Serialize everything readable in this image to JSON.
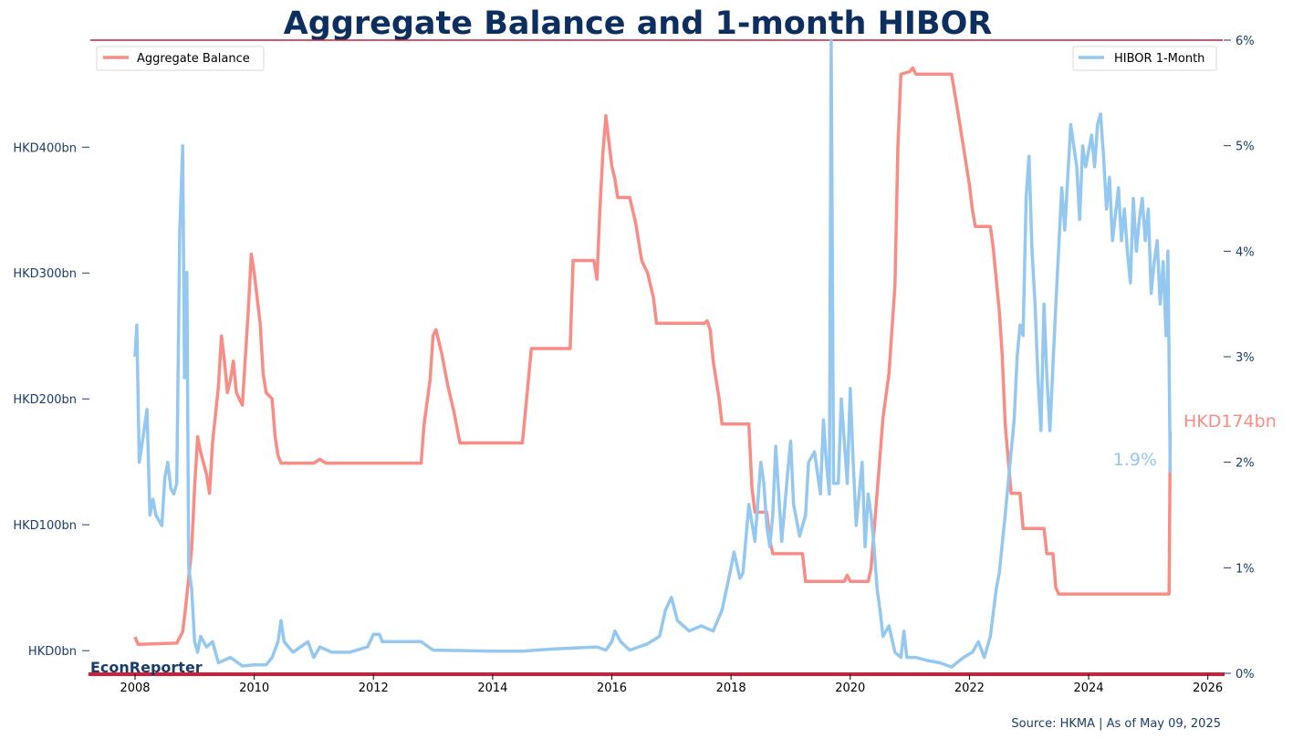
{
  "chart_data": {
    "type": "line",
    "title": "Aggregate Balance and 1-month HIBOR",
    "x_ticks": [
      "2008",
      "2010",
      "2012",
      "2014",
      "2016",
      "2018",
      "2020",
      "2022",
      "2024",
      "2026"
    ],
    "x_range": [
      2007.25,
      2026.25
    ],
    "y_left": {
      "ticks": [
        0,
        100,
        200,
        300,
        400
      ],
      "tick_labels": [
        "HKD0bn",
        "HKD100bn",
        "HKD200bn",
        "HKD300bn",
        "HKD400bn"
      ],
      "range": [
        -18,
        485
      ]
    },
    "y_right": {
      "ticks": [
        0,
        1,
        2,
        3,
        4,
        5,
        6
      ],
      "tick_labels": [
        "0%",
        "1%",
        "2%",
        "3%",
        "4%",
        "5%",
        "6%"
      ],
      "range": [
        0,
        6
      ]
    },
    "legend": {
      "left": {
        "label": "Aggregate Balance",
        "placement": "top-left"
      },
      "right": {
        "label": "HIBOR 1-Month",
        "placement": "top-right"
      }
    },
    "series": [
      {
        "name": "Aggregate Balance",
        "axis": "left",
        "color": "#fa8c86",
        "points": [
          [
            2008.0,
            11
          ],
          [
            2008.05,
            5
          ],
          [
            2008.7,
            6
          ],
          [
            2008.8,
            15
          ],
          [
            2008.85,
            35
          ],
          [
            2008.95,
            80
          ],
          [
            2009.0,
            130
          ],
          [
            2009.05,
            170
          ],
          [
            2009.1,
            158
          ],
          [
            2009.2,
            140
          ],
          [
            2009.25,
            125
          ],
          [
            2009.3,
            165
          ],
          [
            2009.4,
            210
          ],
          [
            2009.45,
            250
          ],
          [
            2009.5,
            230
          ],
          [
            2009.55,
            205
          ],
          [
            2009.6,
            215
          ],
          [
            2009.65,
            230
          ],
          [
            2009.7,
            205
          ],
          [
            2009.8,
            195
          ],
          [
            2009.9,
            270
          ],
          [
            2009.95,
            315
          ],
          [
            2010.0,
            300
          ],
          [
            2010.1,
            260
          ],
          [
            2010.15,
            220
          ],
          [
            2010.2,
            205
          ],
          [
            2010.3,
            200
          ],
          [
            2010.35,
            170
          ],
          [
            2010.4,
            155
          ],
          [
            2010.45,
            149
          ],
          [
            2011.0,
            149
          ],
          [
            2011.1,
            152
          ],
          [
            2011.2,
            149
          ],
          [
            2012.8,
            149
          ],
          [
            2012.85,
            180
          ],
          [
            2012.95,
            215
          ],
          [
            2013.0,
            250
          ],
          [
            2013.05,
            255
          ],
          [
            2013.15,
            235
          ],
          [
            2013.25,
            210
          ],
          [
            2013.35,
            190
          ],
          [
            2013.45,
            165
          ],
          [
            2014.5,
            165
          ],
          [
            2014.55,
            190
          ],
          [
            2014.6,
            215
          ],
          [
            2014.65,
            240
          ],
          [
            2015.3,
            240
          ],
          [
            2015.35,
            310
          ],
          [
            2015.7,
            310
          ],
          [
            2015.75,
            295
          ],
          [
            2015.8,
            350
          ],
          [
            2015.85,
            395
          ],
          [
            2015.9,
            425
          ],
          [
            2015.95,
            405
          ],
          [
            2016.0,
            385
          ],
          [
            2016.05,
            375
          ],
          [
            2016.1,
            360
          ],
          [
            2016.3,
            360
          ],
          [
            2016.4,
            340
          ],
          [
            2016.5,
            310
          ],
          [
            2016.6,
            300
          ],
          [
            2016.7,
            280
          ],
          [
            2016.75,
            260
          ],
          [
            2017.55,
            260
          ],
          [
            2017.6,
            262
          ],
          [
            2017.65,
            255
          ],
          [
            2017.7,
            230
          ],
          [
            2017.8,
            200
          ],
          [
            2017.85,
            180
          ],
          [
            2018.3,
            180
          ],
          [
            2018.35,
            130
          ],
          [
            2018.4,
            110
          ],
          [
            2018.6,
            110
          ],
          [
            2018.65,
            88
          ],
          [
            2018.7,
            77
          ],
          [
            2019.2,
            77
          ],
          [
            2019.25,
            55
          ],
          [
            2019.9,
            55
          ],
          [
            2019.95,
            60
          ],
          [
            2020.0,
            55
          ],
          [
            2020.3,
            55
          ],
          [
            2020.35,
            65
          ],
          [
            2020.4,
            95
          ],
          [
            2020.45,
            125
          ],
          [
            2020.55,
            185
          ],
          [
            2020.65,
            220
          ],
          [
            2020.75,
            290
          ],
          [
            2020.8,
            400
          ],
          [
            2020.85,
            458
          ],
          [
            2021.0,
            460
          ],
          [
            2021.05,
            463
          ],
          [
            2021.1,
            458
          ],
          [
            2021.7,
            458
          ],
          [
            2021.8,
            430
          ],
          [
            2021.9,
            400
          ],
          [
            2022.0,
            370
          ],
          [
            2022.05,
            350
          ],
          [
            2022.1,
            337
          ],
          [
            2022.35,
            337
          ],
          [
            2022.4,
            320
          ],
          [
            2022.5,
            270
          ],
          [
            2022.55,
            235
          ],
          [
            2022.6,
            180
          ],
          [
            2022.7,
            125
          ],
          [
            2022.85,
            125
          ],
          [
            2022.9,
            97
          ],
          [
            2023.25,
            97
          ],
          [
            2023.3,
            77
          ],
          [
            2023.4,
            77
          ],
          [
            2023.45,
            50
          ],
          [
            2023.5,
            45
          ],
          [
            2025.35,
            45
          ],
          [
            2025.37,
            174
          ]
        ]
      },
      {
        "name": "HIBOR 1-Month",
        "axis": "right",
        "color": "#94c8f0",
        "points": [
          [
            2008.0,
            3.0
          ],
          [
            2008.03,
            3.3
          ],
          [
            2008.07,
            2.0
          ],
          [
            2008.1,
            2.1
          ],
          [
            2008.15,
            2.3
          ],
          [
            2008.2,
            2.5
          ],
          [
            2008.25,
            1.5
          ],
          [
            2008.3,
            1.65
          ],
          [
            2008.35,
            1.5
          ],
          [
            2008.4,
            1.45
          ],
          [
            2008.45,
            1.4
          ],
          [
            2008.5,
            1.85
          ],
          [
            2008.55,
            2.0
          ],
          [
            2008.6,
            1.75
          ],
          [
            2008.65,
            1.7
          ],
          [
            2008.7,
            1.8
          ],
          [
            2008.75,
            4.2
          ],
          [
            2008.8,
            5.0
          ],
          [
            2008.83,
            2.8
          ],
          [
            2008.87,
            3.8
          ],
          [
            2008.9,
            1.0
          ],
          [
            2008.95,
            0.8
          ],
          [
            2009.0,
            0.3
          ],
          [
            2009.05,
            0.2
          ],
          [
            2009.1,
            0.35
          ],
          [
            2009.2,
            0.25
          ],
          [
            2009.3,
            0.3
          ],
          [
            2009.4,
            0.1
          ],
          [
            2009.6,
            0.15
          ],
          [
            2009.8,
            0.07
          ],
          [
            2010.0,
            0.08
          ],
          [
            2010.2,
            0.08
          ],
          [
            2010.3,
            0.15
          ],
          [
            2010.4,
            0.3
          ],
          [
            2010.45,
            0.5
          ],
          [
            2010.5,
            0.3
          ],
          [
            2010.65,
            0.2
          ],
          [
            2010.9,
            0.3
          ],
          [
            2011.0,
            0.15
          ],
          [
            2011.1,
            0.25
          ],
          [
            2011.3,
            0.2
          ],
          [
            2011.6,
            0.2
          ],
          [
            2011.9,
            0.25
          ],
          [
            2012.0,
            0.37
          ],
          [
            2012.1,
            0.37
          ],
          [
            2012.15,
            0.3
          ],
          [
            2012.8,
            0.3
          ],
          [
            2013.0,
            0.22
          ],
          [
            2014.0,
            0.21
          ],
          [
            2014.5,
            0.21
          ],
          [
            2015.0,
            0.23
          ],
          [
            2015.75,
            0.25
          ],
          [
            2015.9,
            0.22
          ],
          [
            2016.0,
            0.3
          ],
          [
            2016.05,
            0.4
          ],
          [
            2016.15,
            0.3
          ],
          [
            2016.3,
            0.22
          ],
          [
            2016.6,
            0.28
          ],
          [
            2016.8,
            0.35
          ],
          [
            2016.9,
            0.6
          ],
          [
            2017.0,
            0.72
          ],
          [
            2017.1,
            0.5
          ],
          [
            2017.3,
            0.4
          ],
          [
            2017.5,
            0.45
          ],
          [
            2017.7,
            0.4
          ],
          [
            2017.85,
            0.6
          ],
          [
            2018.0,
            1.0
          ],
          [
            2018.05,
            1.15
          ],
          [
            2018.15,
            0.9
          ],
          [
            2018.2,
            0.95
          ],
          [
            2018.3,
            1.6
          ],
          [
            2018.4,
            1.25
          ],
          [
            2018.5,
            2.0
          ],
          [
            2018.55,
            1.8
          ],
          [
            2018.6,
            1.4
          ],
          [
            2018.65,
            1.2
          ],
          [
            2018.7,
            1.5
          ],
          [
            2018.75,
            2.15
          ],
          [
            2018.85,
            1.25
          ],
          [
            2018.95,
            1.9
          ],
          [
            2019.0,
            2.2
          ],
          [
            2019.05,
            1.6
          ],
          [
            2019.15,
            1.3
          ],
          [
            2019.25,
            1.5
          ],
          [
            2019.3,
            2.0
          ],
          [
            2019.4,
            2.1
          ],
          [
            2019.5,
            1.7
          ],
          [
            2019.55,
            2.4
          ],
          [
            2019.6,
            2.0
          ],
          [
            2019.65,
            1.7
          ],
          [
            2019.68,
            6.0
          ],
          [
            2019.72,
            1.8
          ],
          [
            2019.8,
            1.8
          ],
          [
            2019.85,
            2.6
          ],
          [
            2019.95,
            1.8
          ],
          [
            2020.0,
            2.7
          ],
          [
            2020.05,
            2.0
          ],
          [
            2020.1,
            1.4
          ],
          [
            2020.2,
            2.0
          ],
          [
            2020.25,
            1.2
          ],
          [
            2020.3,
            1.7
          ],
          [
            2020.35,
            1.5
          ],
          [
            2020.4,
            1.2
          ],
          [
            2020.45,
            0.8
          ],
          [
            2020.5,
            0.6
          ],
          [
            2020.55,
            0.35
          ],
          [
            2020.65,
            0.45
          ],
          [
            2020.75,
            0.2
          ],
          [
            2020.85,
            0.15
          ],
          [
            2020.9,
            0.4
          ],
          [
            2020.95,
            0.15
          ],
          [
            2021.1,
            0.15
          ],
          [
            2021.3,
            0.12
          ],
          [
            2021.5,
            0.1
          ],
          [
            2021.7,
            0.06
          ],
          [
            2021.9,
            0.15
          ],
          [
            2022.05,
            0.2
          ],
          [
            2022.15,
            0.3
          ],
          [
            2022.25,
            0.15
          ],
          [
            2022.35,
            0.35
          ],
          [
            2022.45,
            0.8
          ],
          [
            2022.5,
            0.95
          ],
          [
            2022.6,
            1.5
          ],
          [
            2022.7,
            2.1
          ],
          [
            2022.75,
            2.4
          ],
          [
            2022.8,
            3.0
          ],
          [
            2022.85,
            3.3
          ],
          [
            2022.9,
            3.2
          ],
          [
            2022.95,
            4.5
          ],
          [
            2023.0,
            4.9
          ],
          [
            2023.05,
            4.0
          ],
          [
            2023.1,
            3.5
          ],
          [
            2023.15,
            2.8
          ],
          [
            2023.2,
            2.3
          ],
          [
            2023.25,
            3.5
          ],
          [
            2023.3,
            2.8
          ],
          [
            2023.35,
            2.3
          ],
          [
            2023.45,
            3.5
          ],
          [
            2023.55,
            4.6
          ],
          [
            2023.6,
            4.2
          ],
          [
            2023.7,
            5.2
          ],
          [
            2023.8,
            4.8
          ],
          [
            2023.85,
            4.3
          ],
          [
            2023.9,
            5.0
          ],
          [
            2023.95,
            4.8
          ],
          [
            2024.05,
            5.1
          ],
          [
            2024.1,
            4.8
          ],
          [
            2024.15,
            5.2
          ],
          [
            2024.2,
            5.3
          ],
          [
            2024.25,
            4.9
          ],
          [
            2024.3,
            4.4
          ],
          [
            2024.35,
            4.7
          ],
          [
            2024.4,
            4.1
          ],
          [
            2024.5,
            4.6
          ],
          [
            2024.55,
            4.1
          ],
          [
            2024.6,
            4.4
          ],
          [
            2024.65,
            4.0
          ],
          [
            2024.7,
            3.7
          ],
          [
            2024.75,
            4.5
          ],
          [
            2024.8,
            4.0
          ],
          [
            2024.85,
            4.3
          ],
          [
            2024.9,
            4.5
          ],
          [
            2024.95,
            4.1
          ],
          [
            2025.0,
            4.4
          ],
          [
            2025.05,
            3.6
          ],
          [
            2025.1,
            3.9
          ],
          [
            2025.15,
            4.1
          ],
          [
            2025.2,
            3.5
          ],
          [
            2025.25,
            3.9
          ],
          [
            2025.3,
            3.2
          ],
          [
            2025.33,
            4.0
          ],
          [
            2025.37,
            1.9
          ]
        ]
      }
    ],
    "end_labels": {
      "balance": "HKD174bn",
      "hibor": "1.9%"
    },
    "grid": false
  },
  "branding": "EconReporter",
  "source_note": "Source: HKMA | As of May 09, 2025",
  "colors": {
    "title": "#0d2f5f",
    "axis_text": "#1b3d6b",
    "rule": "#cc1f3a",
    "balance": "#fa8c86",
    "hibor": "#94c8f0"
  }
}
